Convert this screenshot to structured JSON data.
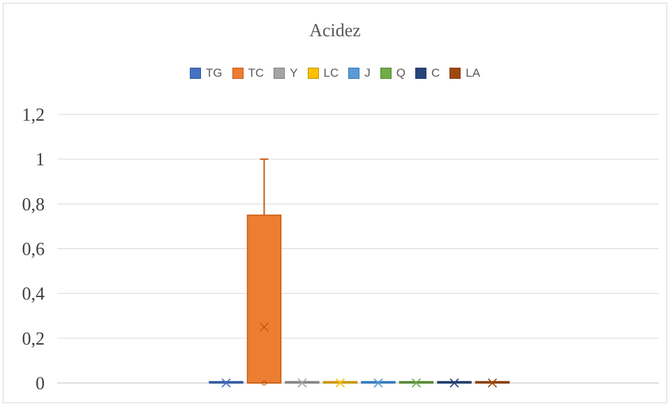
{
  "chart_data": {
    "type": "box",
    "title": "Acidez",
    "xlabel": "",
    "ylabel": "",
    "ylim": [
      0,
      1.2
    ],
    "yticks": [
      "0",
      "0,2",
      "0,4",
      "0,6",
      "0,8",
      "1",
      "1,2"
    ],
    "ytick_values": [
      0,
      0.2,
      0.4,
      0.6,
      0.8,
      1.0,
      1.2
    ],
    "grid": true,
    "legend_position": "top",
    "series": [
      {
        "name": "TG",
        "color": "#4472c4",
        "edge": "#2f5597",
        "min": 0,
        "q1": 0,
        "median": 0,
        "q3": 0,
        "max": 0,
        "mean": 0
      },
      {
        "name": "TC",
        "color": "#ed7d31",
        "edge": "#c55a11",
        "min": 0,
        "q1": 0,
        "median": 0,
        "q3": 0.75,
        "max": 1,
        "mean": 0.25
      },
      {
        "name": "Y",
        "color": "#a5a5a5",
        "edge": "#7f7f7f",
        "min": 0,
        "q1": 0,
        "median": 0,
        "q3": 0,
        "max": 0,
        "mean": 0
      },
      {
        "name": "LC",
        "color": "#ffc000",
        "edge": "#bf9000",
        "min": 0,
        "q1": 0,
        "median": 0,
        "q3": 0,
        "max": 0,
        "mean": 0
      },
      {
        "name": "J",
        "color": "#5b9bd5",
        "edge": "#2e75b6",
        "min": 0,
        "q1": 0,
        "median": 0,
        "q3": 0,
        "max": 0,
        "mean": 0
      },
      {
        "name": "Q",
        "color": "#70ad47",
        "edge": "#548235",
        "min": 0,
        "q1": 0,
        "median": 0,
        "q3": 0,
        "max": 0,
        "mean": 0
      },
      {
        "name": "C",
        "color": "#264478",
        "edge": "#1f3864",
        "min": 0,
        "q1": 0,
        "median": 0,
        "q3": 0,
        "max": 0,
        "mean": 0
      },
      {
        "name": "LA",
        "color": "#9e480e",
        "edge": "#843c0c",
        "min": 0,
        "q1": 0,
        "median": 0,
        "q3": 0,
        "max": 0,
        "mean": 0
      }
    ]
  }
}
